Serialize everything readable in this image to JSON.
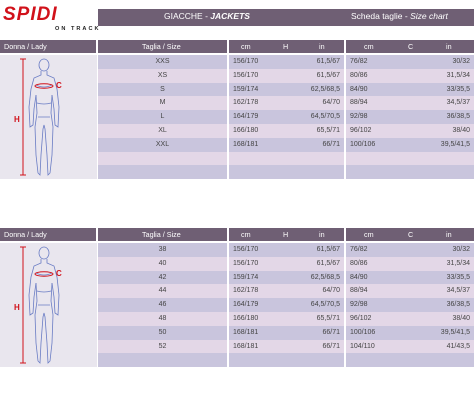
{
  "header": {
    "brand": "SPIDI",
    "brand_sub": "ON TRACK",
    "category_it": "GIACCHE - ",
    "category_en": "JACKETS",
    "chart_it": "Scheda taglie - ",
    "chart_en": "Size chart"
  },
  "tables": [
    {
      "label": "Donna / Lady",
      "size_header": "Taglia / Size",
      "h_header": {
        "unit_cm": "cm",
        "letter": "H",
        "unit_in": "in"
      },
      "c_header": {
        "unit_cm": "cm",
        "letter": "C",
        "unit_in": "in"
      },
      "figure_labels": {
        "c": "C",
        "h": "H"
      },
      "rows": [
        {
          "size": "XXS",
          "h_cm": "156/170",
          "h_in": "61,5/67",
          "c_cm": "76/82",
          "c_in": "30/32"
        },
        {
          "size": "XS",
          "h_cm": "156/170",
          "h_in": "61,5/67",
          "c_cm": "80/86",
          "c_in": "31,5/34"
        },
        {
          "size": "S",
          "h_cm": "159/174",
          "h_in": "62,5/68,5",
          "c_cm": "84/90",
          "c_in": "33/35,5"
        },
        {
          "size": "M",
          "h_cm": "162/178",
          "h_in": "64/70",
          "c_cm": "88/94",
          "c_in": "34,5/37"
        },
        {
          "size": "L",
          "h_cm": "164/179",
          "h_in": "64,5/70,5",
          "c_cm": "92/98",
          "c_in": "36/38,5"
        },
        {
          "size": "XL",
          "h_cm": "166/180",
          "h_in": "65,5/71",
          "c_cm": "96/102",
          "c_in": "38/40"
        },
        {
          "size": "XXL",
          "h_cm": "168/181",
          "h_in": "66/71",
          "c_cm": "100/106",
          "c_in": "39,5/41,5"
        },
        {
          "size": "",
          "h_cm": "",
          "h_in": "",
          "c_cm": "",
          "c_in": ""
        },
        {
          "size": "",
          "h_cm": "",
          "h_in": "",
          "c_cm": "",
          "c_in": ""
        }
      ]
    },
    {
      "label": "Donna / Lady",
      "size_header": "Taglia / Size",
      "h_header": {
        "unit_cm": "cm",
        "letter": "H",
        "unit_in": "in"
      },
      "c_header": {
        "unit_cm": "cm",
        "letter": "C",
        "unit_in": "in"
      },
      "figure_labels": {
        "c": "C",
        "h": "H"
      },
      "rows": [
        {
          "size": "38",
          "h_cm": "156/170",
          "h_in": "61,5/67",
          "c_cm": "76/82",
          "c_in": "30/32"
        },
        {
          "size": "40",
          "h_cm": "156/170",
          "h_in": "61,5/67",
          "c_cm": "80/86",
          "c_in": "31,5/34"
        },
        {
          "size": "42",
          "h_cm": "159/174",
          "h_in": "62,5/68,5",
          "c_cm": "84/90",
          "c_in": "33/35,5"
        },
        {
          "size": "44",
          "h_cm": "162/178",
          "h_in": "64/70",
          "c_cm": "88/94",
          "c_in": "34,5/37"
        },
        {
          "size": "46",
          "h_cm": "164/179",
          "h_in": "64,5/70,5",
          "c_cm": "92/98",
          "c_in": "36/38,5"
        },
        {
          "size": "48",
          "h_cm": "166/180",
          "h_in": "65,5/71",
          "c_cm": "96/102",
          "c_in": "38/40"
        },
        {
          "size": "50",
          "h_cm": "168/181",
          "h_in": "66/71",
          "c_cm": "100/106",
          "c_in": "39,5/41,5"
        },
        {
          "size": "52",
          "h_cm": "168/181",
          "h_in": "66/71",
          "c_cm": "104/110",
          "c_in": "41/43,5"
        },
        {
          "size": "",
          "h_cm": "",
          "h_in": "",
          "c_cm": "",
          "c_in": ""
        }
      ]
    }
  ],
  "colors": {
    "header_bg": "#6f5f74",
    "row_odd": "#c9c5dd",
    "row_even": "#e3d7e7",
    "brand_red": "#d1111a",
    "figure_line": "#6a7cc4",
    "measure_red": "#d1111a"
  },
  "icons": {
    "figure": "woman-silhouette-icon"
  }
}
